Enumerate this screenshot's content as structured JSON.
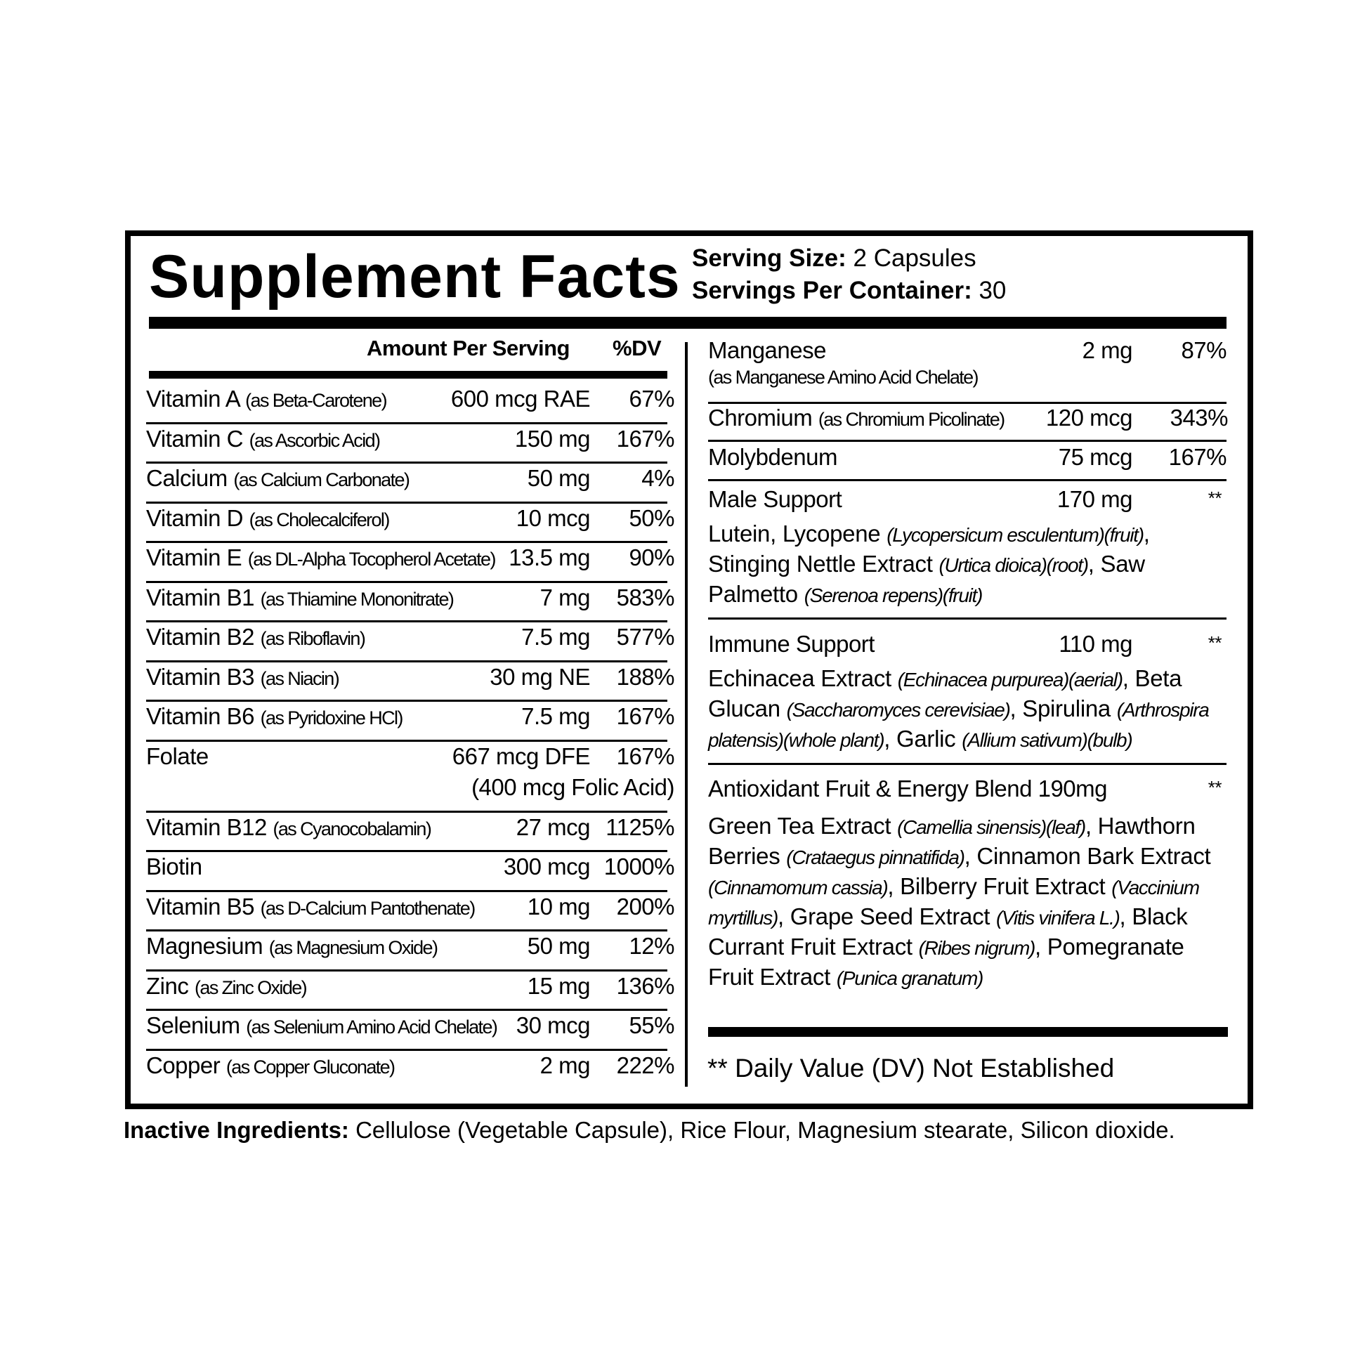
{
  "title": "Supplement Facts",
  "serving": {
    "size_label": "Serving Size:",
    "size_value": "2 Capsules",
    "per_container_label": "Servings Per Container:",
    "per_container_value": "30"
  },
  "table_header": {
    "amount": "Amount Per Serving",
    "dv": "%DV"
  },
  "left_rows": [
    {
      "name": "Vitamin A",
      "source": "(as Beta-Carotene)",
      "amount": "600 mcg RAE",
      "dv": "67%"
    },
    {
      "name": "Vitamin C",
      "source": "(as Ascorbic Acid)",
      "amount": "150 mg",
      "dv": "167%"
    },
    {
      "name": "Calcium",
      "source": "(as Calcium Carbonate)",
      "amount": "50 mg",
      "dv": "4%"
    },
    {
      "name": "Vitamin D",
      "source": "(as Cholecalciferol)",
      "amount": "10 mcg",
      "dv": "50%"
    },
    {
      "name": "Vitamin E",
      "source": "(as DL-Alpha Tocopherol Acetate)",
      "amount": "13.5 mg",
      "dv": "90%"
    },
    {
      "name": "Vitamin B1",
      "source": "(as Thiamine Mononitrate)",
      "amount": "7 mg",
      "dv": "583%"
    },
    {
      "name": "Vitamin B2",
      "source": "(as Riboflavin)",
      "amount": "7.5 mg",
      "dv": "577%"
    },
    {
      "name": "Vitamin B3",
      "source": "(as Niacin)",
      "amount": "30 mg NE",
      "dv": "188%"
    },
    {
      "name": "Vitamin B6",
      "source": "(as Pyridoxine HCl)",
      "amount": "7.5 mg",
      "dv": "167%"
    },
    {
      "name": "Folate",
      "source": "",
      "amount": "667 mcg DFE",
      "amount_note": "(400 mcg Folic Acid)",
      "dv": "167%"
    },
    {
      "name": "Vitamin B12",
      "source": "(as Cyanocobalamin)",
      "amount": "27 mcg",
      "dv": "1125%"
    },
    {
      "name": "Biotin",
      "source": "",
      "amount": "300 mcg",
      "dv": "1000%"
    },
    {
      "name": "Vitamin B5",
      "source": "(as D-Calcium Pantothenate)",
      "amount": "10 mg",
      "dv": "200%"
    },
    {
      "name": "Magnesium",
      "source": "(as Magnesium Oxide)",
      "amount": "50 mg",
      "dv": "12%"
    },
    {
      "name": "Zinc",
      "source": "(as Zinc Oxide)",
      "amount": "15 mg",
      "dv": "136%"
    },
    {
      "name": "Selenium",
      "source": "(as Selenium Amino Acid Chelate)",
      "amount": "30 mcg",
      "dv": "55%"
    },
    {
      "name": "Copper",
      "source": "(as Copper Gluconate)",
      "amount": "2 mg",
      "dv": "222%"
    }
  ],
  "right_rows": {
    "manganese": {
      "name": "Manganese",
      "source": "(as Manganese Amino Acid Chelate)",
      "amount": "2 mg",
      "dv": "87%"
    },
    "chromium": {
      "name": "Chromium",
      "source": "(as Chromium Picolinate)",
      "amount": "120 mcg",
      "dv": "343%"
    },
    "molybdenum": {
      "name": "Molybdenum",
      "amount": "75 mcg",
      "dv": "167%"
    }
  },
  "blends": [
    {
      "name": "Male Support",
      "amount": "170 mg",
      "dv": "**",
      "ingredients": [
        {
          "t": "Lutein, Lycopene ",
          "i": false
        },
        {
          "t": "(Lycopersicum esculentum)(fruit)",
          "i": true
        },
        {
          "t": ", Stinging Nettle Extract ",
          "i": false
        },
        {
          "t": "(Urtica dioica)(root)",
          "i": true
        },
        {
          "t": ", Saw Palmetto ",
          "i": false
        },
        {
          "t": "(Serenoa repens)(fruit)",
          "i": true
        }
      ]
    },
    {
      "name": "Immune Support",
      "amount": "110 mg",
      "dv": "**",
      "ingredients": [
        {
          "t": "Echinacea Extract ",
          "i": false
        },
        {
          "t": "(Echinacea purpurea)(aerial)",
          "i": true
        },
        {
          "t": ", Beta Glucan ",
          "i": false
        },
        {
          "t": "(Saccharomyces cerevisiae)",
          "i": true
        },
        {
          "t": ", Spirulina ",
          "i": false
        },
        {
          "t": "(Arthrospira platensis)(whole plant)",
          "i": true
        },
        {
          "t": ", Garlic ",
          "i": false
        },
        {
          "t": "(Allium sativum)(bulb)",
          "i": true
        }
      ]
    },
    {
      "name": "Antioxidant Fruit & Energy Blend 190mg",
      "amount": "",
      "dv": "**",
      "ingredients": [
        {
          "t": "Green Tea Extract ",
          "i": false
        },
        {
          "t": "(Camellia sinensis)(leaf)",
          "i": true
        },
        {
          "t": ", Hawthorn Berries ",
          "i": false
        },
        {
          "t": "(Crataegus pinnatifida)",
          "i": true
        },
        {
          "t": ", Cinnamon Bark Extract ",
          "i": false
        },
        {
          "t": "(Cinnamomum cassia)",
          "i": true
        },
        {
          "t": ", Bilberry Fruit Extract ",
          "i": false
        },
        {
          "t": "(Vaccinium myrtillus)",
          "i": true
        },
        {
          "t": ", Grape Seed Extract ",
          "i": false
        },
        {
          "t": "(Vitis vinifera L.)",
          "i": true
        },
        {
          "t": ", Black Currant Fruit Extract ",
          "i": false
        },
        {
          "t": "(Ribes nigrum)",
          "i": true
        },
        {
          "t": ", Pomegranate Fruit Extract ",
          "i": false
        },
        {
          "t": "(Punica granatum)",
          "i": true
        }
      ]
    }
  ],
  "footnote": "** Daily Value (DV) Not Established",
  "inactive": {
    "label": "Inactive Ingredients:",
    "text": " Cellulose (Vegetable Capsule), Rice Flour, Magnesium stearate, Silicon dioxide."
  }
}
